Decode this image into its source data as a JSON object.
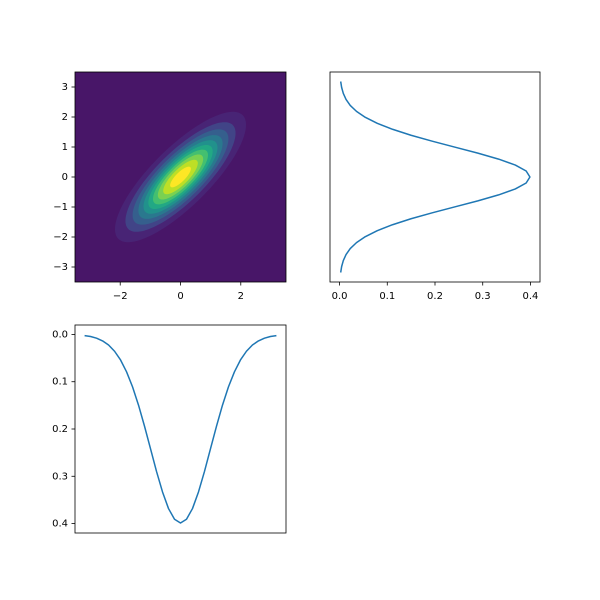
{
  "chart_data": [
    {
      "type": "contour",
      "xlim": [
        -3.5,
        3.5
      ],
      "ylim": [
        -3.5,
        3.5
      ],
      "xticks": [
        {
          "value": -2,
          "label": "−2"
        },
        0,
        2
      ],
      "yticks": [
        {
          "value": -3,
          "label": "−3"
        },
        {
          "value": -2,
          "label": "−2"
        },
        {
          "value": -1,
          "label": "−1"
        },
        0,
        1,
        2,
        3
      ],
      "covariance": [
        [
          1,
          0.8
        ],
        [
          0.8,
          1
        ]
      ],
      "levels": [
        0,
        0.025,
        0.05,
        0.075,
        0.1,
        0.125,
        0.15,
        0.175,
        0.2,
        0.225,
        0.25
      ],
      "colors": [
        "#481668",
        "#482475",
        "#414487",
        "#355f8d",
        "#2a788e",
        "#21918c",
        "#22a884",
        "#44bf70",
        "#7ad151",
        "#bddf26",
        "#fde725"
      ]
    },
    {
      "type": "line",
      "orientation": "horizontal",
      "color": "#1f77b4",
      "xlim": [
        -0.02,
        0.42
      ],
      "ylim": [
        -3.52,
        3.52
      ],
      "xticks": [
        {
          "value": 0,
          "label": "0.0"
        },
        {
          "value": 0.1,
          "label": "0.1"
        },
        {
          "value": 0.2,
          "label": "0.2"
        },
        {
          "value": 0.3,
          "label": "0.3"
        },
        {
          "value": 0.4,
          "label": "0.4"
        }
      ],
      "x": [
        -3.2,
        -3.0,
        -2.8,
        -2.6,
        -2.4,
        -2.2,
        -2.0,
        -1.8,
        -1.6,
        -1.4,
        -1.2,
        -1.0,
        -0.8,
        -0.6,
        -0.4,
        -0.2,
        0,
        0.2,
        0.4,
        0.6,
        0.8,
        1.0,
        1.2,
        1.4,
        1.6,
        1.8,
        2.0,
        2.2,
        2.4,
        2.6,
        2.8,
        3.0,
        3.2
      ],
      "values": [
        0.0024,
        0.0044,
        0.0079,
        0.0136,
        0.0224,
        0.0355,
        0.054,
        0.079,
        0.1109,
        0.1497,
        0.1942,
        0.242,
        0.2897,
        0.3332,
        0.3683,
        0.391,
        0.3989,
        0.391,
        0.3683,
        0.3332,
        0.2897,
        0.242,
        0.1942,
        0.1497,
        0.1109,
        0.079,
        0.054,
        0.0355,
        0.0224,
        0.0136,
        0.0079,
        0.0044,
        0.0024
      ]
    },
    {
      "type": "line",
      "orientation": "vertical",
      "color": "#1f77b4",
      "yinverted": true,
      "xlim": [
        -3.52,
        3.52
      ],
      "ylim": [
        -0.02,
        0.42
      ],
      "yticks": [
        {
          "value": 0,
          "label": "0.0"
        },
        {
          "value": 0.1,
          "label": "0.1"
        },
        {
          "value": 0.2,
          "label": "0.2"
        },
        {
          "value": 0.3,
          "label": "0.3"
        },
        {
          "value": 0.4,
          "label": "0.4"
        }
      ],
      "x": [
        -3.2,
        -3.0,
        -2.8,
        -2.6,
        -2.4,
        -2.2,
        -2.0,
        -1.8,
        -1.6,
        -1.4,
        -1.2,
        -1.0,
        -0.8,
        -0.6,
        -0.4,
        -0.2,
        0,
        0.2,
        0.4,
        0.6,
        0.8,
        1.0,
        1.2,
        1.4,
        1.6,
        1.8,
        2.0,
        2.2,
        2.4,
        2.6,
        2.8,
        3.0,
        3.2
      ],
      "values": [
        0.0024,
        0.0044,
        0.0079,
        0.0136,
        0.0224,
        0.0355,
        0.054,
        0.079,
        0.1109,
        0.1497,
        0.1942,
        0.242,
        0.2897,
        0.3332,
        0.3683,
        0.391,
        0.3989,
        0.391,
        0.3683,
        0.3332,
        0.2897,
        0.242,
        0.1942,
        0.1497,
        0.1109,
        0.079,
        0.054,
        0.0355,
        0.0224,
        0.0136,
        0.0079,
        0.0044,
        0.0024
      ]
    }
  ]
}
